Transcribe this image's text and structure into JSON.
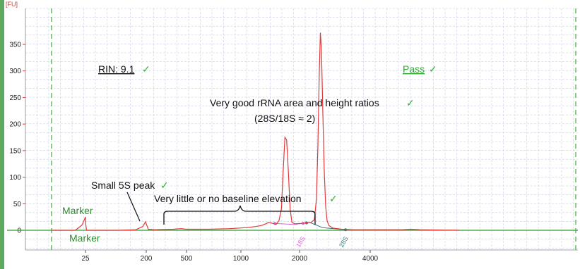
{
  "chart_data": {
    "type": "line",
    "title": "",
    "xlabel": "",
    "ylabel": "[FU]",
    "x_ticks": [
      "25",
      "200",
      "500",
      "1000",
      "2000",
      "4000"
    ],
    "x_tick_values": [
      25,
      200,
      500,
      1000,
      2000,
      4000
    ],
    "y_ticks": [
      0,
      50,
      100,
      150,
      200,
      250,
      300,
      350
    ],
    "ylim": [
      -15,
      380
    ],
    "grid": true,
    "series": [
      {
        "name": "",
        "color": "#e03a3a",
        "points": [
          [
            15,
            0
          ],
          [
            22,
            0
          ],
          [
            24,
            10
          ],
          [
            25,
            25
          ],
          [
            26,
            10
          ],
          [
            28,
            0
          ],
          [
            120,
            0
          ],
          [
            170,
            1
          ],
          [
            190,
            7
          ],
          [
            198,
            16
          ],
          [
            205,
            9
          ],
          [
            215,
            2
          ],
          [
            260,
            1
          ],
          [
            400,
            2
          ],
          [
            460,
            3
          ],
          [
            500,
            2
          ],
          [
            700,
            2
          ],
          [
            900,
            3
          ],
          [
            1100,
            5
          ],
          [
            1250,
            7
          ],
          [
            1350,
            9
          ],
          [
            1420,
            12
          ],
          [
            1480,
            15
          ],
          [
            1540,
            13
          ],
          [
            1600,
            11
          ],
          [
            1650,
            18
          ],
          [
            1690,
            40
          ],
          [
            1720,
            110
          ],
          [
            1750,
            175
          ],
          [
            1780,
            170
          ],
          [
            1810,
            110
          ],
          [
            1840,
            40
          ],
          [
            1870,
            15
          ],
          [
            1920,
            12
          ],
          [
            2050,
            13
          ],
          [
            2200,
            14
          ],
          [
            2330,
            15
          ],
          [
            2420,
            20
          ],
          [
            2480,
            60
          ],
          [
            2520,
            160
          ],
          [
            2560,
            300
          ],
          [
            2590,
            372
          ],
          [
            2620,
            340
          ],
          [
            2660,
            220
          ],
          [
            2700,
            110
          ],
          [
            2740,
            45
          ],
          [
            2780,
            18
          ],
          [
            2830,
            9
          ],
          [
            2950,
            4
          ],
          [
            3200,
            2
          ],
          [
            3500,
            1
          ],
          [
            4000,
            1
          ],
          [
            4900,
            1
          ],
          [
            5150,
            2
          ],
          [
            5400,
            1
          ],
          [
            6500,
            0
          ]
        ]
      }
    ],
    "baseline": {
      "color": "#2f9e2f",
      "y": 0
    },
    "peak_window_18s": {
      "color": "#d66ad6",
      "label": "18S",
      "points": [
        [
          1580,
          13
        ],
        [
          1900,
          11
        ],
        [
          2100,
          13
        ]
      ]
    },
    "peak_window_28s": {
      "color": "#2f7f7f",
      "label": "28S",
      "points": [
        [
          2200,
          14
        ],
        [
          2280,
          15
        ],
        [
          2650,
          5
        ],
        [
          3300,
          1
        ]
      ]
    },
    "annotations": {
      "fu_label": "[FU]",
      "rin_label": "RIN: 9.1",
      "pass_label": "Pass",
      "ratio_label_1": "Very good rRNA area and height ratios",
      "ratio_label_2": "(28S/18S ≈ 2)",
      "small_5s_label": "Small 5S peak",
      "baseline_label": "Very little or no baseline elevation",
      "marker_top": "Marker",
      "marker_bottom": "Marker",
      "check": "✓",
      "peak_18s": "18S",
      "peak_28s": "28S"
    },
    "colors": {
      "trace": "#e03a3a",
      "axis": "#2f9e2f",
      "grid": "#c8cde6",
      "dashed_green": "#40a840",
      "check": "#35b335",
      "text": "#111111"
    }
  }
}
